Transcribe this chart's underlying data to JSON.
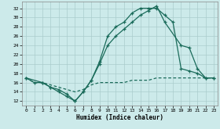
{
  "xlabel": "Humidex (Indice chaleur)",
  "background_color": "#cceaea",
  "grid_color": "#aacccc",
  "line_color": "#1a6b5a",
  "xlim": [
    -0.5,
    23.5
  ],
  "ylim": [
    11,
    33.5
  ],
  "yticks": [
    12,
    14,
    16,
    18,
    20,
    22,
    24,
    26,
    28,
    30,
    32
  ],
  "xticks": [
    0,
    1,
    2,
    3,
    4,
    5,
    6,
    7,
    8,
    9,
    10,
    11,
    12,
    13,
    14,
    15,
    16,
    17,
    18,
    19,
    20,
    21,
    22,
    23
  ],
  "line1_x": [
    0,
    1,
    2,
    3,
    4,
    5,
    6,
    7,
    8,
    9,
    10,
    11,
    12,
    13,
    14,
    15,
    16,
    17,
    18,
    19,
    20,
    21,
    22,
    23
  ],
  "line1_y": [
    17,
    16,
    16,
    15,
    14,
    13,
    12,
    14,
    16.5,
    20.5,
    26,
    28,
    29,
    31,
    32,
    32,
    32,
    30.5,
    29,
    19,
    18.5,
    18,
    17,
    17
  ],
  "line2_x": [
    0,
    2,
    3,
    4,
    5,
    6,
    7,
    8,
    9,
    10,
    11,
    12,
    13,
    14,
    15,
    16,
    17,
    19,
    20,
    21,
    22,
    23
  ],
  "line2_y": [
    17,
    16,
    15,
    14.5,
    13.5,
    12,
    14,
    16.5,
    20,
    24,
    26,
    27.5,
    29,
    30.5,
    31.5,
    32.5,
    29,
    24,
    23.5,
    19,
    17,
    17
  ],
  "line3_x": [
    0,
    1,
    2,
    3,
    4,
    5,
    6,
    7,
    8,
    9,
    10,
    11,
    12,
    13,
    14,
    15,
    16,
    17,
    18,
    19,
    20,
    21,
    22,
    23
  ],
  "line3_y": [
    17,
    16,
    16,
    15.5,
    15,
    14.5,
    14,
    14.5,
    15.5,
    16,
    16,
    16,
    16,
    16.5,
    16.5,
    16.5,
    17,
    17,
    17,
    17,
    17,
    17,
    17,
    17
  ]
}
